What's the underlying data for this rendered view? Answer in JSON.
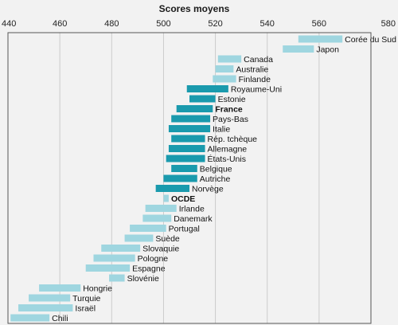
{
  "chart_data": {
    "type": "bar",
    "subtype": "range",
    "title": "Scores moyens",
    "xlim": [
      440,
      580
    ],
    "ticks": [
      440,
      460,
      480,
      500,
      520,
      540,
      560,
      580
    ],
    "grid": true,
    "colors": {
      "default": "#9fd6e0",
      "highlight": "#1a9aad",
      "oecd": "#9fd6e0",
      "frame": "#555555",
      "grid": "#cccccc",
      "background": "#f2f2f2"
    },
    "categories": [
      "Corée du Sud",
      "Japon",
      "Canada",
      "Australie",
      "Finlande",
      "Royaume-Uni",
      "Estonie",
      "France",
      "Pays-Bas",
      "Italie",
      "Rép. tchèque",
      "Allemagne",
      "États-Unis",
      "Belgique",
      "Autriche",
      "Norvège",
      "OCDE",
      "Irlande",
      "Danemark",
      "Portugal",
      "Suède",
      "Slovaquie",
      "Pologne",
      "Espagne",
      "Slovénie",
      "Hongrie",
      "Turquie",
      "Israël",
      "Chili"
    ],
    "series": [
      {
        "values": [
          [
            552,
            569
          ],
          [
            546,
            558
          ],
          [
            521,
            530
          ],
          [
            520,
            527
          ],
          [
            519,
            528
          ],
          [
            509,
            525
          ],
          [
            510,
            520
          ],
          [
            505,
            519
          ],
          [
            503,
            518
          ],
          [
            502,
            518
          ],
          [
            503,
            516
          ],
          [
            502,
            516
          ],
          [
            501,
            516
          ],
          [
            503,
            513
          ],
          [
            500,
            513
          ],
          [
            497,
            510
          ],
          [
            500,
            502
          ],
          [
            493,
            505
          ],
          [
            492,
            503
          ],
          [
            487,
            501
          ],
          [
            485,
            496
          ],
          [
            476,
            491
          ],
          [
            473,
            489
          ],
          [
            470,
            487
          ],
          [
            479,
            485
          ],
          [
            452,
            468
          ],
          [
            448,
            464
          ],
          [
            444,
            465
          ],
          [
            441,
            456
          ]
        ]
      }
    ],
    "highlighted": [
      "Royaume-Uni",
      "Estonie",
      "France",
      "Pays-Bas",
      "Italie",
      "Rép. tchèque",
      "Allemagne",
      "États-Unis",
      "Belgique",
      "Autriche",
      "Norvège"
    ],
    "bold_labels": [
      "France",
      "OCDE"
    ]
  }
}
